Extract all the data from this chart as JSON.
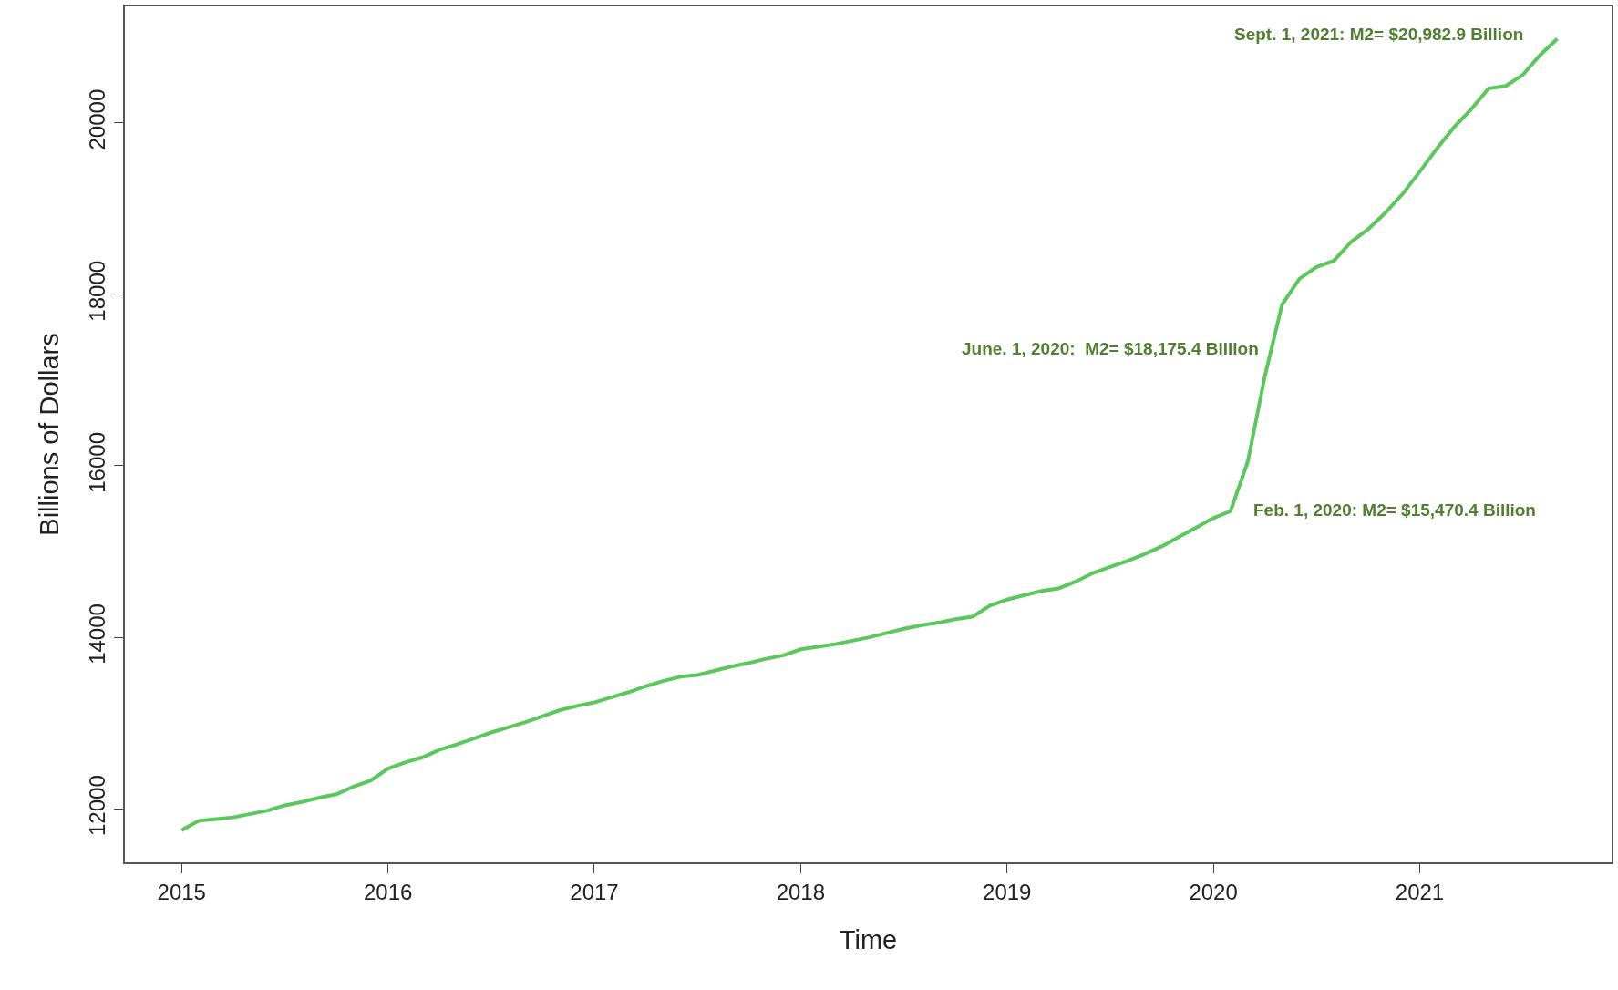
{
  "chart_data": {
    "type": "line",
    "xlabel": "Time",
    "ylabel": "Billions of Dollars",
    "x": [
      2015,
      2015.083,
      2015.167,
      2015.25,
      2015.333,
      2015.417,
      2015.5,
      2015.583,
      2015.667,
      2015.75,
      2015.833,
      2015.917,
      2016,
      2016.083,
      2016.167,
      2016.25,
      2016.333,
      2016.417,
      2016.5,
      2016.583,
      2016.667,
      2016.75,
      2016.833,
      2016.917,
      2017,
      2017.083,
      2017.167,
      2017.25,
      2017.333,
      2017.417,
      2017.5,
      2017.583,
      2017.667,
      2017.75,
      2017.833,
      2017.917,
      2018,
      2018.083,
      2018.167,
      2018.25,
      2018.333,
      2018.417,
      2018.5,
      2018.583,
      2018.667,
      2018.75,
      2018.833,
      2018.917,
      2019,
      2019.083,
      2019.167,
      2019.25,
      2019.333,
      2019.417,
      2019.5,
      2019.583,
      2019.667,
      2019.75,
      2019.833,
      2019.917,
      2020,
      2020.083,
      2020.167,
      2020.25,
      2020.333,
      2020.417,
      2020.5,
      2020.583,
      2020.667,
      2020.75,
      2020.833,
      2020.917,
      2021,
      2021.083,
      2021.167,
      2021.25,
      2021.333,
      2021.417,
      2021.5,
      2021.583,
      2021.667
    ],
    "series": [
      {
        "color": "#5ac85a",
        "values": [
          11750,
          11860,
          11880,
          11900,
          11940,
          11980,
          12040,
          12080,
          12130,
          12170,
          12260,
          12330,
          12470,
          12540,
          12600,
          12690,
          12750,
          12820,
          12890,
          12950,
          13010,
          13080,
          13150,
          13200,
          13240,
          13300,
          13360,
          13430,
          13490,
          13540,
          13560,
          13610,
          13660,
          13700,
          13750,
          13790,
          13860,
          13890,
          13920,
          13960,
          14000,
          14050,
          14100,
          14140,
          14170,
          14210,
          14240,
          14370,
          14440,
          14490,
          14540,
          14570,
          14650,
          14750,
          14820,
          14890,
          14970,
          15060,
          15170,
          15280,
          15390,
          15470,
          16050,
          17050,
          17880,
          18180,
          18320,
          18390,
          18610,
          18760,
          18950,
          19170,
          19430,
          19700,
          19950,
          20160,
          20400,
          20430,
          20560,
          20790,
          20980
        ]
      }
    ],
    "xlim": [
      2014.725,
      2021.93
    ],
    "xticks": [
      2015,
      2016,
      2017,
      2018,
      2019,
      2020,
      2021
    ],
    "ylim": [
      11375,
      21358
    ],
    "yticks": [
      12000,
      14000,
      16000,
      18000,
      20000
    ],
    "grid": false,
    "marker": "none",
    "line_style": "solid",
    "annotations": [
      "Feb. 1, 2020: M2= $15,470.4 Billion",
      "June. 1, 2020:  M2= $18,175.4 Billion",
      "Sept. 1, 2021: M2= $20,982.9 Billion"
    ]
  }
}
